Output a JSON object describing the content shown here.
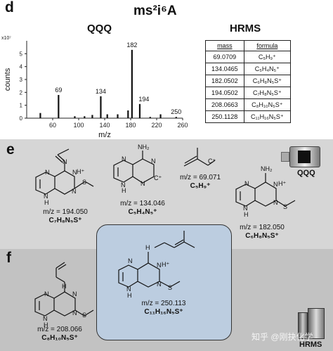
{
  "panel_d": {
    "label": "d",
    "title": "ms²i⁶A",
    "qqq_title": "QQQ",
    "hrms_title": "HRMS",
    "yaxis_multiplier": "x10⁷",
    "yaxis_label": "counts",
    "xaxis_label": "m/z",
    "hrms_table": {
      "headers": [
        "mass",
        "formula"
      ],
      "rows": [
        [
          "69.0709",
          "C₅H₉⁺"
        ],
        [
          "134.0465",
          "C₅H₄N₅⁺"
        ],
        [
          "182.0502",
          "C₆H₈N₅S⁺"
        ],
        [
          "194.0502",
          "C₇H₈N₅S⁺"
        ],
        [
          "208.0663",
          "C₈H₁₀N₅S⁺"
        ],
        [
          "250.1128",
          "C₁₁H₁₆N₅S⁺"
        ]
      ]
    }
  },
  "chart_data": {
    "type": "bar",
    "title": "QQQ",
    "xlabel": "m/z",
    "ylabel": "counts",
    "y_multiplier": "x10⁷",
    "xlim": [
      20,
      260
    ],
    "ylim": [
      0,
      6
    ],
    "xticks": [
      60,
      100,
      140,
      180,
      220,
      260
    ],
    "yticks": [
      0,
      1,
      2,
      3,
      4,
      5
    ],
    "x": [
      41,
      69,
      94,
      109,
      121,
      134,
      144,
      160,
      176,
      182,
      194,
      210,
      226,
      250
    ],
    "values": [
      0.4,
      1.8,
      0.15,
      0.15,
      0.25,
      1.7,
      0.3,
      0.3,
      0.6,
      5.3,
      1.1,
      0.1,
      0.3,
      0.1
    ],
    "data_labels": [
      {
        "x": 69,
        "text": "69"
      },
      {
        "x": 134,
        "text": "134"
      },
      {
        "x": 182,
        "text": "182"
      },
      {
        "x": 194,
        "text": "194"
      },
      {
        "x": 250,
        "text": "250"
      }
    ]
  },
  "panel_e": {
    "label": "e",
    "instrument_label": "QQQ",
    "fragments": [
      {
        "mz": "m/z = 194.050",
        "formula": "C₇H₈N₅S⁺"
      },
      {
        "mz": "m/z = 134.046",
        "formula": "C₅H₄N₅⁺"
      },
      {
        "mz": "m/z = 69.071",
        "formula": "C₅H₉⁺"
      },
      {
        "mz": "m/z = 182.050",
        "formula": "C₆H₈N₅S⁺"
      }
    ]
  },
  "panel_f": {
    "label": "f",
    "instrument_label": "HRMS",
    "fragment": {
      "mz": "m/z = 208.066",
      "formula": "C₈H₁₀N₅S⁺"
    },
    "parent": {
      "mz": "m/z = 250.113",
      "formula": "C₁₁H₁₆N₅S⁺"
    }
  },
  "watermark": "知乎 @刚抉化学",
  "atoms": {
    "N": "N",
    "NH": "H",
    "NH_plus": "H⁺",
    "NH2": "NH₂",
    "S": "S",
    "C_plus": "C⁺",
    "C": "C"
  }
}
